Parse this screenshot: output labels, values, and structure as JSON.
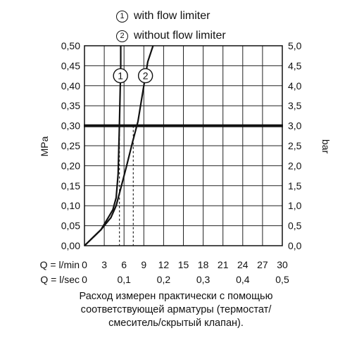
{
  "legend": [
    {
      "num": "1",
      "label": "with flow limiter"
    },
    {
      "num": "2",
      "label": "without flow limiter"
    }
  ],
  "caption": [
    "Расход измерен практически с помощью",
    "соответствующей арматуры (термостат/",
    "смеситель/скрытый клапан)."
  ],
  "chart_data": {
    "type": "line",
    "y_left": {
      "label": "MPa",
      "range": [
        0,
        0.5
      ],
      "ticks": [
        "0,00",
        "0,05",
        "0,10",
        "0,15",
        "0,20",
        "0,25",
        "0,30",
        "0,35",
        "0,40",
        "0,45",
        "0,50"
      ]
    },
    "y_right": {
      "label": "bar",
      "range": [
        0,
        5
      ],
      "ticks": [
        "0,0",
        "0,5",
        "1,0",
        "1,5",
        "2,0",
        "2,5",
        "3,0",
        "3,5",
        "4,0",
        "4,5",
        "5,0"
      ]
    },
    "x_lmin": {
      "label": "Q = l/min",
      "range": [
        0,
        30
      ],
      "ticks": [
        "0",
        "3",
        "6",
        "9",
        "12",
        "15",
        "18",
        "21",
        "24",
        "27",
        "30"
      ]
    },
    "x_lsec": {
      "label": "Q = l/sec",
      "range": [
        0,
        0.5
      ],
      "ticks": [
        "0",
        "0,1",
        "0,2",
        "0,3",
        "0,4",
        "0,5"
      ]
    },
    "grid": true,
    "reference_line": {
      "y": 0.3
    },
    "series": [
      {
        "marker": "1",
        "x": [
          0,
          2.5,
          3.6,
          4.3,
          4.8,
          5.1,
          5.2,
          5.3,
          5.4,
          5.5,
          5.5
        ],
        "y": [
          0,
          0.04,
          0.07,
          0.09,
          0.12,
          0.18,
          0.24,
          0.3,
          0.38,
          0.45,
          0.5
        ]
      },
      {
        "marker": "2",
        "x": [
          0,
          2.5,
          4.0,
          4.8,
          5.6,
          6.4,
          7.3,
          8.1,
          9.0,
          9.6,
          10.4
        ],
        "y": [
          0,
          0.04,
          0.07,
          0.1,
          0.15,
          0.2,
          0.26,
          0.31,
          0.4,
          0.46,
          0.5
        ]
      }
    ],
    "dashed_guides": [
      {
        "x": 5.3,
        "y": 0.3
      },
      {
        "x": 7.4,
        "y": 0.3
      }
    ]
  }
}
